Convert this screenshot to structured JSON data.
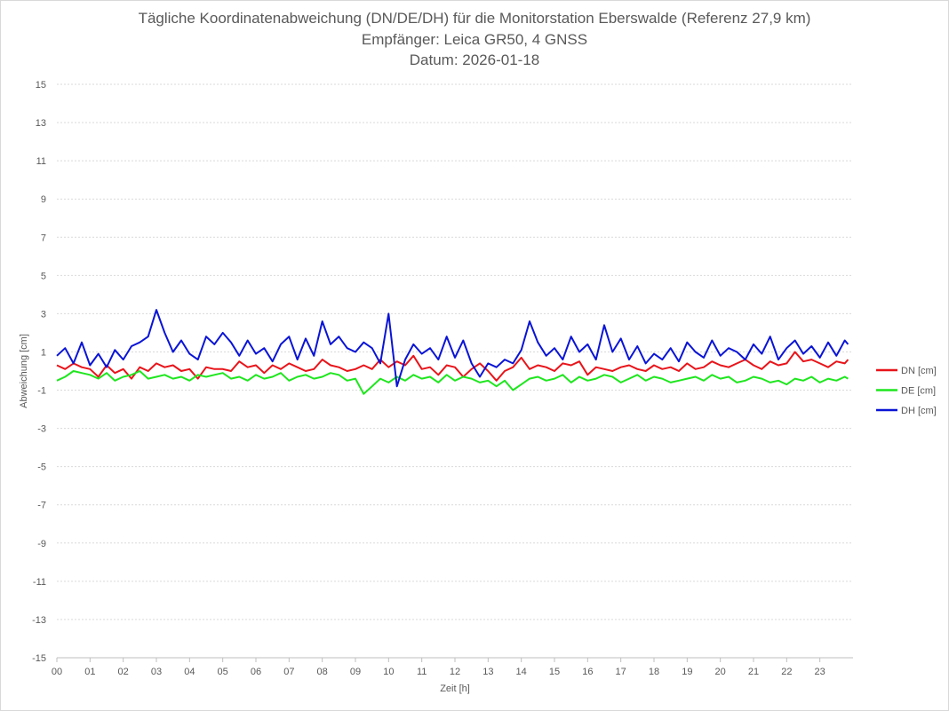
{
  "chart_data": {
    "type": "line",
    "title": "Tägliche Koordinatenabweichung (DN/DE/DH) für die Monitorstation Eberswalde (Referenz 27,9 km)",
    "subtitle": "Empfänger: Leica GR50, 4 GNSS",
    "date_label": "Datum: 2026-01-18",
    "xlabel": "Zeit [h]",
    "ylabel": "Abweichung [cm]",
    "ylim": [
      -15,
      15
    ],
    "yticks": [
      "15",
      "13",
      "11",
      "9",
      "7",
      "5",
      "3",
      "1",
      "-1",
      "-3",
      "-5",
      "-7",
      "-9",
      "-11",
      "-13",
      "-15"
    ],
    "xlim": [
      0,
      24
    ],
    "xticks": [
      "00",
      "01",
      "02",
      "03",
      "04",
      "05",
      "06",
      "07",
      "08",
      "09",
      "10",
      "11",
      "12",
      "13",
      "14",
      "15",
      "16",
      "17",
      "18",
      "19",
      "20",
      "21",
      "22",
      "23"
    ],
    "grid": "horizontal-dotted",
    "legend_position": "right",
    "x": [
      0.0,
      0.25,
      0.5,
      0.75,
      1.0,
      1.25,
      1.5,
      1.75,
      2.0,
      2.25,
      2.5,
      2.75,
      3.0,
      3.25,
      3.5,
      3.75,
      4.0,
      4.25,
      4.5,
      4.75,
      5.0,
      5.25,
      5.5,
      5.75,
      6.0,
      6.25,
      6.5,
      6.75,
      7.0,
      7.25,
      7.5,
      7.75,
      8.0,
      8.25,
      8.5,
      8.75,
      9.0,
      9.25,
      9.5,
      9.75,
      10.0,
      10.25,
      10.5,
      10.75,
      11.0,
      11.25,
      11.5,
      11.75,
      12.0,
      12.25,
      12.5,
      12.75,
      13.0,
      13.25,
      13.5,
      13.75,
      14.0,
      14.25,
      14.5,
      14.75,
      15.0,
      15.25,
      15.5,
      15.75,
      16.0,
      16.25,
      16.5,
      16.75,
      17.0,
      17.25,
      17.5,
      17.75,
      18.0,
      18.25,
      18.5,
      18.75,
      19.0,
      19.25,
      19.5,
      19.75,
      20.0,
      20.25,
      20.5,
      20.75,
      21.0,
      21.25,
      21.5,
      21.75,
      22.0,
      22.25,
      22.5,
      22.75,
      23.0,
      23.25,
      23.5,
      23.75,
      23.85
    ],
    "series": [
      {
        "name": "DN [cm]",
        "color": "#e8141a",
        "values": [
          0.3,
          0.1,
          0.4,
          0.2,
          0.1,
          -0.3,
          0.3,
          -0.1,
          0.1,
          -0.4,
          0.2,
          0.0,
          0.4,
          0.2,
          0.3,
          0.0,
          0.1,
          -0.4,
          0.2,
          0.1,
          0.1,
          0.0,
          0.5,
          0.2,
          0.3,
          -0.1,
          0.3,
          0.1,
          0.4,
          0.2,
          0.0,
          0.1,
          0.6,
          0.3,
          0.2,
          0.0,
          0.1,
          0.3,
          0.1,
          0.6,
          0.2,
          0.5,
          0.3,
          0.8,
          0.1,
          0.2,
          -0.2,
          0.3,
          0.2,
          -0.3,
          0.1,
          0.4,
          0.0,
          -0.5,
          0.0,
          0.2,
          0.7,
          0.1,
          0.3,
          0.2,
          0.0,
          0.4,
          0.3,
          0.5,
          -0.2,
          0.2,
          0.1,
          0.0,
          0.2,
          0.3,
          0.1,
          0.0,
          0.3,
          0.1,
          0.2,
          0.0,
          0.4,
          0.1,
          0.2,
          0.5,
          0.3,
          0.2,
          0.4,
          0.6,
          0.3,
          0.1,
          0.5,
          0.3,
          0.4,
          1.0,
          0.5,
          0.6,
          0.4,
          0.2,
          0.5,
          0.4,
          0.6
        ]
      },
      {
        "name": "DE [cm]",
        "color": "#1ee61e",
        "values": [
          -0.5,
          -0.3,
          0.0,
          -0.1,
          -0.2,
          -0.4,
          -0.1,
          -0.5,
          -0.3,
          -0.2,
          0.0,
          -0.4,
          -0.3,
          -0.2,
          -0.4,
          -0.3,
          -0.5,
          -0.2,
          -0.3,
          -0.2,
          -0.1,
          -0.4,
          -0.3,
          -0.5,
          -0.2,
          -0.4,
          -0.3,
          -0.1,
          -0.5,
          -0.3,
          -0.2,
          -0.4,
          -0.3,
          -0.1,
          -0.2,
          -0.5,
          -0.4,
          -1.2,
          -0.8,
          -0.4,
          -0.6,
          -0.3,
          -0.5,
          -0.2,
          -0.4,
          -0.3,
          -0.6,
          -0.2,
          -0.5,
          -0.3,
          -0.4,
          -0.6,
          -0.5,
          -0.8,
          -0.5,
          -1.0,
          -0.7,
          -0.4,
          -0.3,
          -0.5,
          -0.4,
          -0.2,
          -0.6,
          -0.3,
          -0.5,
          -0.4,
          -0.2,
          -0.3,
          -0.6,
          -0.4,
          -0.2,
          -0.5,
          -0.3,
          -0.4,
          -0.6,
          -0.5,
          -0.4,
          -0.3,
          -0.5,
          -0.2,
          -0.4,
          -0.3,
          -0.6,
          -0.5,
          -0.3,
          -0.4,
          -0.6,
          -0.5,
          -0.7,
          -0.4,
          -0.5,
          -0.3,
          -0.6,
          -0.4,
          -0.5,
          -0.3,
          -0.4
        ]
      },
      {
        "name": "DH [cm]",
        "color": "#0a14d6",
        "values": [
          0.8,
          1.2,
          0.4,
          1.5,
          0.3,
          0.9,
          0.2,
          1.1,
          0.6,
          1.3,
          1.5,
          1.8,
          3.2,
          2.0,
          1.0,
          1.6,
          0.9,
          0.6,
          1.8,
          1.4,
          2.0,
          1.5,
          0.8,
          1.6,
          0.9,
          1.2,
          0.5,
          1.4,
          1.8,
          0.6,
          1.7,
          0.8,
          2.6,
          1.4,
          1.8,
          1.2,
          1.0,
          1.5,
          1.2,
          0.4,
          3.0,
          -0.8,
          0.6,
          1.4,
          0.9,
          1.2,
          0.6,
          1.8,
          0.7,
          1.6,
          0.4,
          -0.3,
          0.4,
          0.2,
          0.6,
          0.4,
          1.1,
          2.6,
          1.5,
          0.8,
          1.2,
          0.6,
          1.8,
          1.0,
          1.4,
          0.6,
          2.4,
          1.0,
          1.7,
          0.6,
          1.3,
          0.4,
          0.9,
          0.6,
          1.2,
          0.5,
          1.5,
          1.0,
          0.7,
          1.6,
          0.8,
          1.2,
          1.0,
          0.6,
          1.4,
          0.9,
          1.8,
          0.6,
          1.2,
          1.6,
          0.9,
          1.3,
          0.7,
          1.5,
          0.8,
          1.6,
          1.4
        ]
      }
    ]
  }
}
